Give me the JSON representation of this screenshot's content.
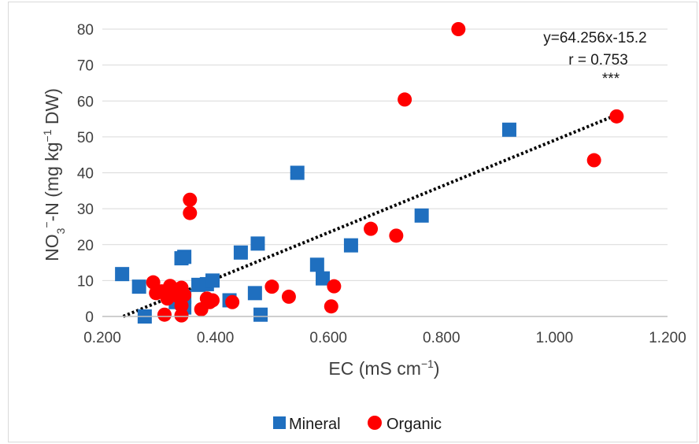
{
  "chart_data": {
    "type": "scatter",
    "xlabel": "EC (mS cm",
    "xlabel_sup": "−1",
    "xlabel_end": ")",
    "ylabel": "NO",
    "ylabel_sub": "3",
    "ylabel_sup1": "−",
    "ylabel_mid": "-N (mg kg",
    "ylabel_sup2": "−1",
    "ylabel_end": " DW)",
    "xlim": [
      0.2,
      1.2
    ],
    "ylim": [
      0,
      80
    ],
    "xticks": [
      "0.200",
      "0.400",
      "0.600",
      "0.800",
      "1.000",
      "1.200"
    ],
    "yticks": [
      "0",
      "10",
      "20",
      "30",
      "40",
      "50",
      "60",
      "70",
      "80"
    ],
    "grid": "horizontal",
    "legend_position": "bottom",
    "series": [
      {
        "name": "Mineral",
        "marker": "square",
        "color": "#1f6fbf",
        "points": [
          [
            0.235,
            11.8
          ],
          [
            0.265,
            8.3
          ],
          [
            0.275,
            0.0
          ],
          [
            0.34,
            16.2
          ],
          [
            0.345,
            16.6
          ],
          [
            0.33,
            4.0
          ],
          [
            0.345,
            2.5
          ],
          [
            0.345,
            5.5
          ],
          [
            0.37,
            8.8
          ],
          [
            0.385,
            9.0
          ],
          [
            0.395,
            10.0
          ],
          [
            0.425,
            4.5
          ],
          [
            0.445,
            17.8
          ],
          [
            0.47,
            6.5
          ],
          [
            0.475,
            20.3
          ],
          [
            0.48,
            0.5
          ],
          [
            0.545,
            40.0
          ],
          [
            0.58,
            14.4
          ],
          [
            0.59,
            10.6
          ],
          [
            0.64,
            19.8
          ],
          [
            0.765,
            28.1
          ],
          [
            0.92,
            52.0
          ]
        ]
      },
      {
        "name": "Organic",
        "marker": "circle",
        "color": "#ff0000",
        "points": [
          [
            0.29,
            9.5
          ],
          [
            0.295,
            6.5
          ],
          [
            0.305,
            7.0
          ],
          [
            0.31,
            0.5
          ],
          [
            0.315,
            5.0
          ],
          [
            0.32,
            8.5
          ],
          [
            0.33,
            7.5
          ],
          [
            0.335,
            5.5
          ],
          [
            0.34,
            8.0
          ],
          [
            0.34,
            3.0
          ],
          [
            0.34,
            0.3
          ],
          [
            0.345,
            6.0
          ],
          [
            0.355,
            32.5
          ],
          [
            0.355,
            28.8
          ],
          [
            0.375,
            2.0
          ],
          [
            0.385,
            5.0
          ],
          [
            0.39,
            4.0
          ],
          [
            0.395,
            4.5
          ],
          [
            0.43,
            4.0
          ],
          [
            0.5,
            8.3
          ],
          [
            0.53,
            5.5
          ],
          [
            0.605,
            2.8
          ],
          [
            0.61,
            8.4
          ],
          [
            0.675,
            24.4
          ],
          [
            0.72,
            22.5
          ],
          [
            0.735,
            60.4
          ],
          [
            0.83,
            80.0
          ],
          [
            1.07,
            43.5
          ],
          [
            1.11,
            55.7
          ]
        ]
      }
    ],
    "trendline": {
      "slope": 64.256,
      "intercept": -15.2,
      "style": "dotted",
      "color": "#000000",
      "x_range": [
        0.237,
        1.11
      ]
    },
    "annotations": [
      "y=64.256x-15.2",
      "r = 0.753",
      "***"
    ]
  }
}
